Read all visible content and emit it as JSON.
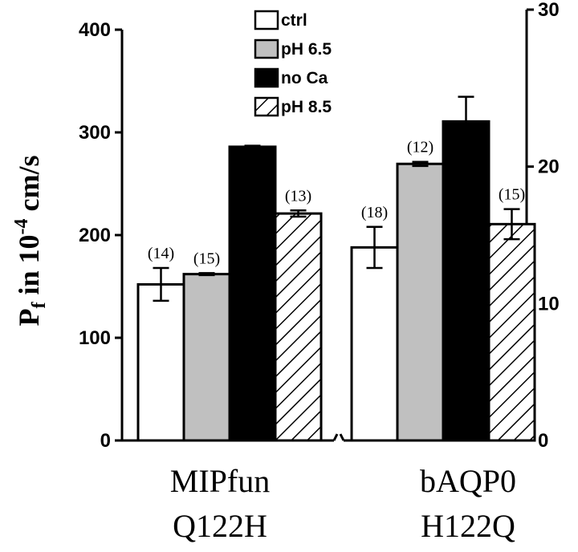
{
  "chart_data": {
    "type": "bar",
    "ylabel": {
      "main": "P",
      "sub": "f",
      "mid": " in 10",
      "sup": "-4",
      "end": " cm/s"
    },
    "groups": [
      {
        "key": "mipfun",
        "label_line1": "MIPfun",
        "label_line2": "Q122H",
        "axis": "left"
      },
      {
        "key": "baqp0",
        "label_line1": "bAQP0",
        "label_line2": "H122Q",
        "axis": "right"
      }
    ],
    "series": [
      {
        "name": "ctrl",
        "fill": "#ffffff",
        "hatch": false
      },
      {
        "name": "pH 6.5",
        "fill": "#c0c0c0",
        "hatch": false
      },
      {
        "name": "no Ca",
        "fill": "#000000",
        "hatch": false
      },
      {
        "name": "pH 8.5",
        "fill": "#ffffff",
        "hatch": true
      }
    ],
    "values": [
      [
        152,
        162,
        286,
        221
      ],
      [
        14.1,
        20.2,
        23.3,
        15.8
      ]
    ],
    "errors": [
      [
        16,
        1,
        1,
        3
      ],
      [
        1.5,
        0.15,
        1.8,
        1.1
      ]
    ],
    "n_labels": [
      [
        "(14)",
        "(15)",
        "",
        "(13)"
      ],
      [
        "(18)",
        "(12)",
        "",
        "(15)"
      ]
    ],
    "left_axis": {
      "min": 0,
      "max": 400,
      "ticks": [
        0,
        100,
        200,
        300,
        400
      ],
      "tick_labels": [
        "0",
        "100",
        "200",
        "300",
        "400"
      ]
    },
    "right_axis": {
      "min": 0,
      "max": 30,
      "ticks": [
        0,
        10,
        20,
        30
      ],
      "tick_labels": [
        "0",
        "10",
        "20",
        "30"
      ]
    },
    "legend": {
      "position": "top-center"
    },
    "grid": false
  }
}
